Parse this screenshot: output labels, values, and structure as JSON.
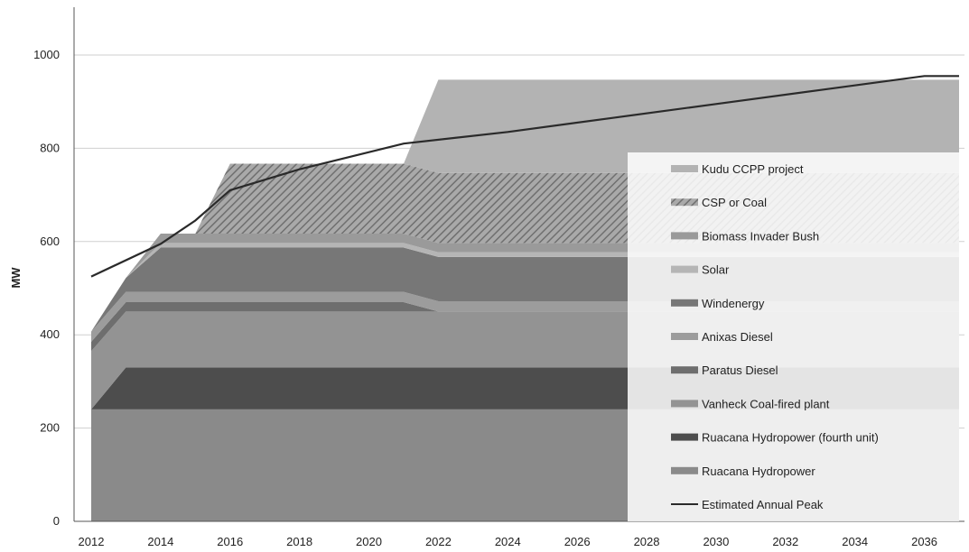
{
  "chart_data": {
    "type": "area",
    "stacked": true,
    "ylabel": "MW",
    "xlabel": "",
    "ylim": [
      0,
      1000
    ],
    "xlim": [
      2012,
      2037
    ],
    "yticks": [
      0,
      200,
      400,
      600,
      800,
      1000
    ],
    "xticks": [
      2012,
      2014,
      2016,
      2018,
      2020,
      2022,
      2024,
      2026,
      2028,
      2030,
      2032,
      2034,
      2036
    ],
    "grid": "horizontal",
    "legend_position": "right-inside",
    "x": [
      2012,
      2013,
      2014,
      2015,
      2016,
      2017,
      2018,
      2019,
      2020,
      2021,
      2022,
      2023,
      2024,
      2025,
      2026,
      2027,
      2028,
      2029,
      2030,
      2031,
      2032,
      2033,
      2034,
      2035,
      2036,
      2037
    ],
    "series": [
      {
        "name": "Ruacana Hydropower",
        "color": "#8a8a8a",
        "pattern": "solid",
        "values": [
          240,
          240,
          240,
          240,
          240,
          240,
          240,
          240,
          240,
          240,
          240,
          240,
          240,
          240,
          240,
          240,
          240,
          240,
          240,
          240,
          240,
          240,
          240,
          240,
          240,
          240
        ]
      },
      {
        "name": "Ruacana Hydropower (fourth unit)",
        "color": "#4d4d4d",
        "pattern": "solid",
        "values": [
          0,
          90,
          90,
          90,
          90,
          90,
          90,
          90,
          90,
          90,
          90,
          90,
          90,
          90,
          90,
          90,
          90,
          90,
          90,
          90,
          90,
          90,
          90,
          90,
          90,
          90
        ]
      },
      {
        "name": "Vanheck Coal-fired plant",
        "color": "#939393",
        "pattern": "solid",
        "values": [
          125,
          120,
          120,
          120,
          120,
          120,
          120,
          120,
          120,
          120,
          120,
          120,
          120,
          120,
          120,
          120,
          120,
          120,
          120,
          120,
          120,
          120,
          120,
          120,
          120,
          120
        ]
      },
      {
        "name": "Paratus Diesel",
        "color": "#6e6e6e",
        "pattern": "solid",
        "values": [
          20,
          20,
          20,
          20,
          20,
          20,
          20,
          20,
          20,
          20,
          0,
          0,
          0,
          0,
          0,
          0,
          0,
          0,
          0,
          0,
          0,
          0,
          0,
          0,
          0,
          0
        ]
      },
      {
        "name": "Anixas Diesel",
        "color": "#9c9c9c",
        "pattern": "solid",
        "values": [
          22,
          22,
          22,
          22,
          22,
          22,
          22,
          22,
          22,
          22,
          22,
          22,
          22,
          22,
          22,
          22,
          22,
          22,
          22,
          22,
          22,
          22,
          22,
          22,
          22,
          22
        ]
      },
      {
        "name": "Windenergy",
        "color": "#777777",
        "pattern": "solid",
        "values": [
          0,
          30,
          95,
          95,
          95,
          95,
          95,
          95,
          95,
          95,
          95,
          95,
          95,
          95,
          95,
          95,
          95,
          95,
          95,
          95,
          95,
          95,
          95,
          95,
          95,
          95
        ]
      },
      {
        "name": "Solar",
        "color": "#b5b5b5",
        "pattern": "solid",
        "values": [
          0,
          0,
          10,
          10,
          10,
          10,
          10,
          10,
          10,
          10,
          10,
          10,
          10,
          10,
          10,
          10,
          10,
          10,
          10,
          10,
          10,
          10,
          10,
          10,
          10,
          10
        ]
      },
      {
        "name": "Biomass Invader Bush",
        "color": "#9a9a9a",
        "pattern": "solid",
        "values": [
          0,
          0,
          20,
          20,
          20,
          20,
          20,
          20,
          20,
          20,
          20,
          20,
          20,
          20,
          20,
          20,
          20,
          20,
          20,
          20,
          20,
          20,
          20,
          20,
          20,
          20
        ]
      },
      {
        "name": "CSP or Coal",
        "color": "#8f8f8f",
        "pattern": "hatch",
        "values": [
          0,
          0,
          0,
          0,
          150,
          150,
          150,
          150,
          150,
          150,
          150,
          150,
          150,
          150,
          150,
          150,
          150,
          150,
          150,
          150,
          150,
          150,
          150,
          150,
          150,
          150
        ]
      },
      {
        "name": "Kudu CCPP project",
        "color": "#b3b3b3",
        "pattern": "solid",
        "values": [
          0,
          0,
          0,
          0,
          0,
          0,
          0,
          0,
          0,
          0,
          200,
          200,
          200,
          200,
          200,
          200,
          200,
          200,
          200,
          200,
          200,
          200,
          200,
          200,
          200,
          200
        ]
      }
    ],
    "line": {
      "name": "Estimated Annual Peak",
      "color": "#2a2a2a",
      "x": [
        2012,
        2014,
        2015,
        2016,
        2018,
        2021,
        2024,
        2027,
        2030,
        2033,
        2036,
        2037
      ],
      "values": [
        525,
        595,
        645,
        710,
        755,
        810,
        835,
        865,
        895,
        925,
        955,
        955
      ]
    },
    "legend": [
      {
        "label": "Kudu CCPP project",
        "swatch": "area",
        "series": 9
      },
      {
        "label": "CSP or Coal",
        "swatch": "hatch",
        "series": 8
      },
      {
        "label": "Biomass Invader Bush",
        "swatch": "area",
        "series": 7
      },
      {
        "label": "Solar",
        "swatch": "area",
        "series": 6
      },
      {
        "label": "Windenergy",
        "swatch": "area",
        "series": 5
      },
      {
        "label": "Anixas Diesel",
        "swatch": "area",
        "series": 4
      },
      {
        "label": "Paratus Diesel",
        "swatch": "area",
        "series": 3
      },
      {
        "label": "Vanheck Coal-fired plant",
        "swatch": "area",
        "series": 2
      },
      {
        "label": "Ruacana Hydropower (fourth unit)",
        "swatch": "area",
        "series": 1
      },
      {
        "label": "Ruacana Hydropower",
        "swatch": "area",
        "series": 0
      },
      {
        "label": "Estimated Annual Peak",
        "swatch": "line",
        "series": -1
      }
    ]
  }
}
